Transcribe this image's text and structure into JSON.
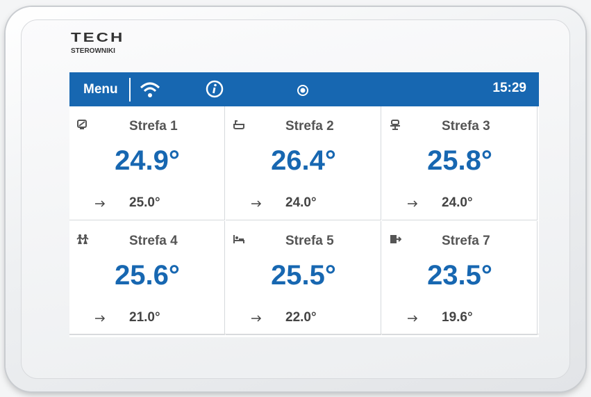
{
  "logo": {
    "brand": "TECH",
    "subtitle": "STEROWNIKI"
  },
  "header": {
    "menu": "Menu",
    "time": "15:29"
  },
  "zones": [
    {
      "name": "Strefa 1",
      "temperature": "24.9°",
      "setpoint": "25.0°"
    },
    {
      "name": "Strefa 2",
      "temperature": "26.4°",
      "setpoint": "24.0°"
    },
    {
      "name": "Strefa 3",
      "temperature": "25.8°",
      "setpoint": "24.0°"
    },
    {
      "name": "Strefa 4",
      "temperature": "25.6°",
      "setpoint": "21.0°"
    },
    {
      "name": "Strefa 5",
      "temperature": "25.5°",
      "setpoint": "22.0°"
    },
    {
      "name": "Strefa 7",
      "temperature": "23.5°",
      "setpoint": "19.6°"
    }
  ]
}
